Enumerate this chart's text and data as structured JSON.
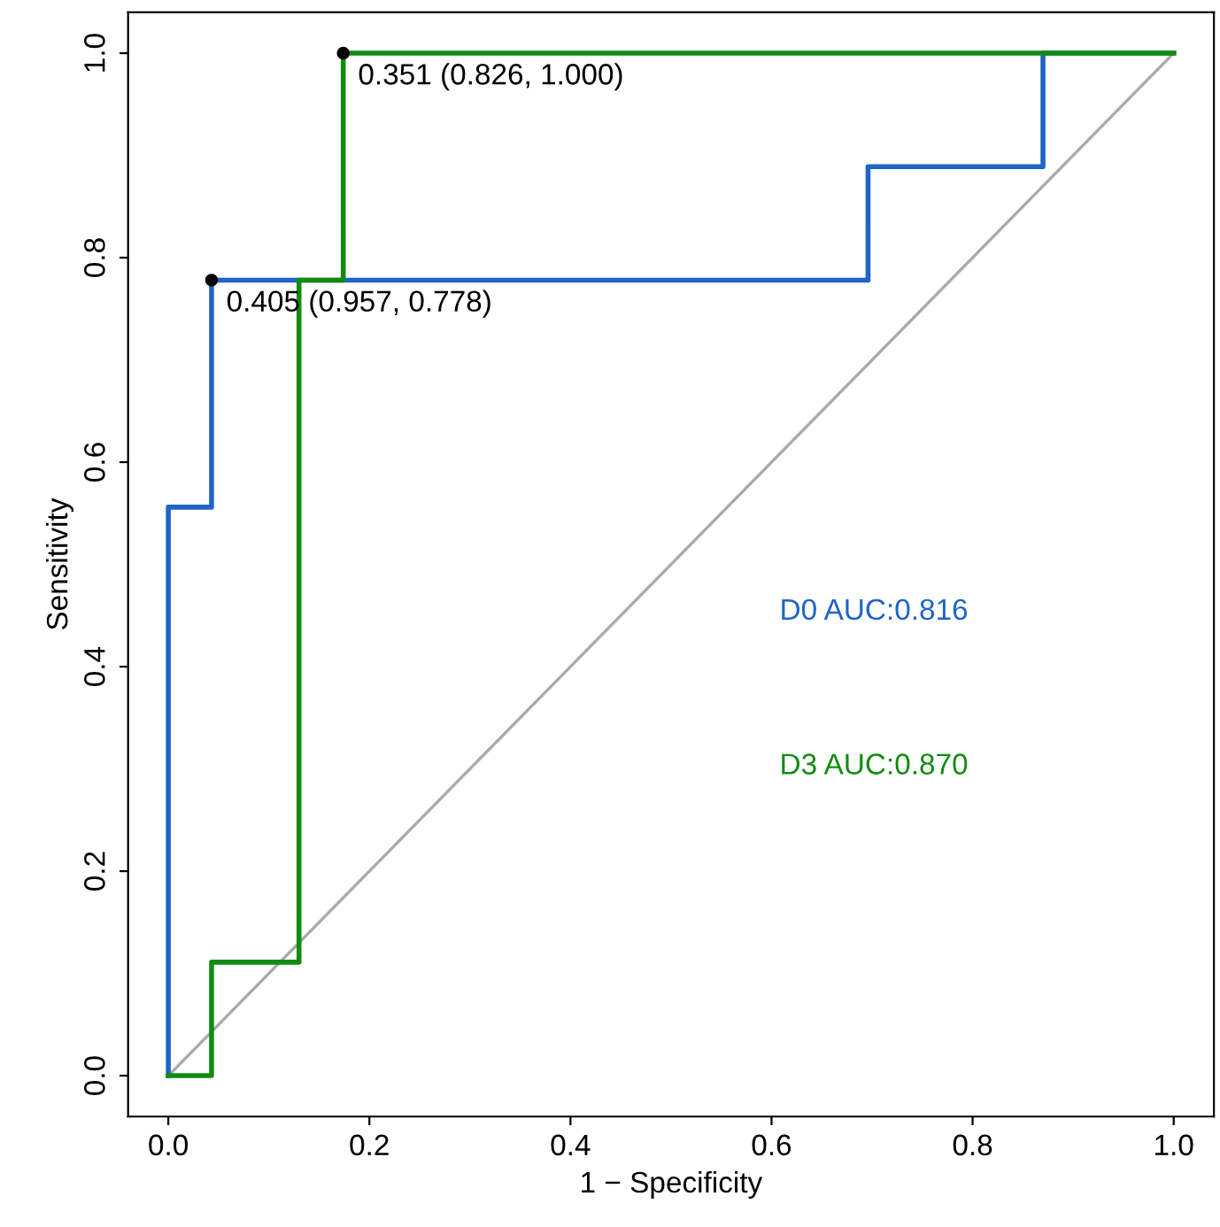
{
  "chart_data": {
    "type": "line",
    "xlabel": "1 − Specificity",
    "ylabel": "Sensitivity",
    "xlim": [
      -0.04,
      1.04
    ],
    "ylim": [
      -0.04,
      1.04
    ],
    "xticks": [
      {
        "value": 0,
        "label": "0.0"
      },
      {
        "value": 0.2,
        "label": "0.2"
      },
      {
        "value": 0.4,
        "label": "0.4"
      },
      {
        "value": 0.6,
        "label": "0.6"
      },
      {
        "value": 0.8,
        "label": "0.8"
      },
      {
        "value": 1,
        "label": "1.0"
      }
    ],
    "yticks": [
      {
        "value": 0,
        "label": "0.0"
      },
      {
        "value": 0.2,
        "label": "0.2"
      },
      {
        "value": 0.4,
        "label": "0.4"
      },
      {
        "value": 0.6,
        "label": "0.6"
      },
      {
        "value": 0.8,
        "label": "0.8"
      },
      {
        "value": 1,
        "label": "1.0"
      }
    ],
    "grid": false,
    "legend": "right",
    "line_style": "solid",
    "series": [
      {
        "color": "#aaaaaa",
        "x": [
          0,
          1
        ],
        "values": [
          0,
          1
        ]
      },
      {
        "name": "D0 AUC:0.816",
        "color": "#1f64c8",
        "x": [
          0,
          0,
          0.043,
          0.043,
          0.696,
          0.696,
          0.87,
          0.87,
          1
        ],
        "values": [
          0,
          0.556,
          0.556,
          0.778,
          0.778,
          0.889,
          0.889,
          1,
          1
        ]
      },
      {
        "name": "D3 AUC:0.870",
        "color": "#118c11",
        "x": [
          0,
          0.043,
          0.043,
          0.13,
          0.13,
          0.174,
          0.174,
          1
        ],
        "values": [
          0,
          0,
          0.111,
          0.111,
          0.778,
          0.778,
          1,
          1
        ]
      },
      {
        "type": "scatter",
        "marker": "circle",
        "color": "#000000",
        "x": [
          0.043,
          0.174
        ],
        "values": [
          0.778,
          1.0
        ]
      }
    ],
    "annotations": [
      {
        "text": "0.405 (0.957, 0.778)",
        "x": 0.043,
        "y": 0.778
      },
      {
        "text": "0.351 (0.826, 1.000)",
        "x": 0.174,
        "y": 1.0
      }
    ]
  }
}
